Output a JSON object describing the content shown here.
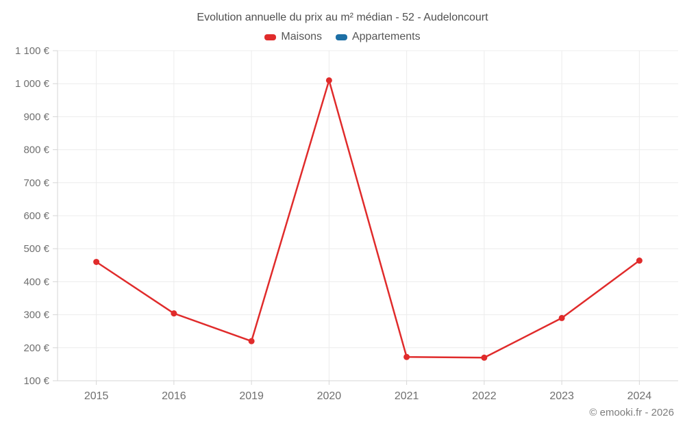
{
  "chart": {
    "title": "Evolution annuelle du prix au m² médian - 52 - Audeloncourt"
  },
  "legend": {
    "items": [
      {
        "label": "Maisons",
        "color": "#e02b2b"
      },
      {
        "label": "Appartements",
        "color": "#1d6fa5"
      }
    ]
  },
  "footer": {
    "text": "© emooki.fr - 2026"
  },
  "colors": {
    "gridline": "#ececec",
    "axis_line": "#d6d6d6",
    "tick_label": "#6f6f6f"
  },
  "chart_data": {
    "type": "line",
    "title": "Evolution annuelle du prix au m² médian - 52 - Audeloncourt",
    "categories": [
      "2015",
      "2016",
      "2019",
      "2020",
      "2021",
      "2022",
      "2023",
      "2024"
    ],
    "series": [
      {
        "name": "Maisons",
        "color": "#e02b2b",
        "values": [
          460,
          304,
          220,
          1010,
          172,
          170,
          290,
          464
        ]
      },
      {
        "name": "Appartements",
        "color": "#1d6fa5",
        "values": []
      }
    ],
    "xlabel": "",
    "ylabel": "",
    "ylim": [
      100,
      1100
    ],
    "y_ticks": [
      100,
      200,
      300,
      400,
      500,
      600,
      700,
      800,
      900,
      1000,
      1100
    ],
    "y_tick_labels": [
      "100 €",
      "200 €",
      "300 €",
      "400 €",
      "500 €",
      "600 €",
      "700 €",
      "800 €",
      "900 €",
      "1 000 €",
      "1 100 €"
    ],
    "grid": true,
    "legend_position": "top"
  }
}
